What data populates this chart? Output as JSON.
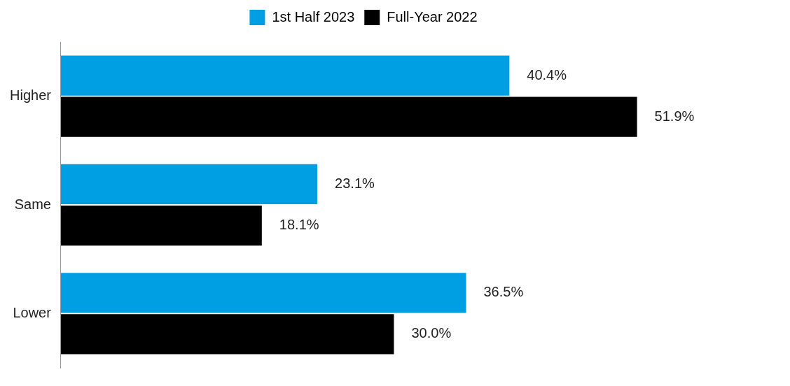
{
  "chart_data": {
    "type": "bar",
    "orientation": "horizontal",
    "categories": [
      "Higher",
      "Same",
      "Lower"
    ],
    "series": [
      {
        "name": "1st Half 2023",
        "color": "#009fe3",
        "values": [
          40.4,
          23.1,
          36.5
        ],
        "value_labels": [
          "40.4%",
          "23.1%",
          "36.5%"
        ]
      },
      {
        "name": "Full-Year 2022",
        "color": "#000000",
        "values": [
          51.9,
          18.1,
          30.0
        ],
        "value_labels": [
          "51.9%",
          "18.1%",
          "30.0%"
        ]
      }
    ],
    "tick_labels": "y",
    "grid": false,
    "legend": "top"
  }
}
